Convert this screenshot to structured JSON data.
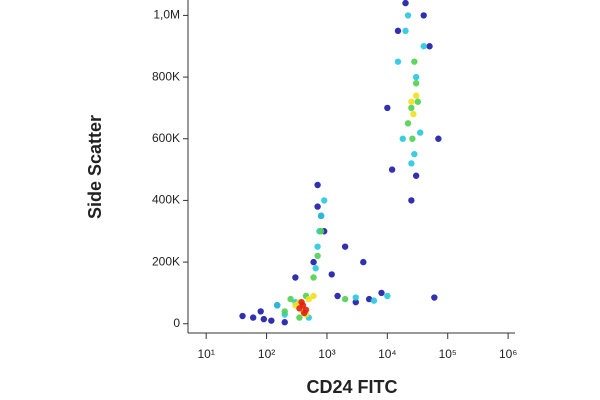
{
  "chart_data": {
    "type": "scatter",
    "xlabel": "CD24 FITC",
    "ylabel": "Side Scatter",
    "xscale": "log",
    "xlim": [
      5,
      1300000
    ],
    "xticks": [
      {
        "value": 10,
        "label": "10¹"
      },
      {
        "value": 100,
        "label": "10²"
      },
      {
        "value": 1000,
        "label": "10³"
      },
      {
        "value": 10000,
        "label": "10⁴"
      },
      {
        "value": 100000,
        "label": "10⁵"
      },
      {
        "value": 1000000,
        "label": "10⁶"
      }
    ],
    "ylim": [
      -30000,
      1050000
    ],
    "yticks": [
      0,
      {
        "value": 200000,
        "label": "200K"
      },
      {
        "value": 400000,
        "label": "400K"
      },
      {
        "value": 600000,
        "label": "600K"
      },
      {
        "value": 800000,
        "label": "800K"
      },
      {
        "value": 1000000,
        "label": "1,0M"
      }
    ],
    "series": [
      {
        "color": "#1a1aa8",
        "x": [
          60,
          80,
          120,
          150,
          200,
          90,
          300,
          700,
          1500,
          3000,
          5000,
          8000,
          2000,
          900,
          600,
          12000,
          15000,
          50000,
          70000,
          20000,
          40000,
          10000,
          25000,
          30000,
          800,
          700,
          1200,
          40,
          4000,
          60000
        ],
        "values": [
          20000,
          40000,
          10000,
          60000,
          5000,
          15000,
          150000,
          450000,
          90000,
          70000,
          80000,
          100000,
          250000,
          300000,
          200000,
          500000,
          950000,
          900000,
          600000,
          1040000,
          1000000,
          700000,
          400000,
          480000,
          350000,
          380000,
          160000,
          25000,
          200000,
          85000
        ]
      },
      {
        "color": "#28c8e0",
        "x": [
          15000,
          20000,
          30000,
          40000,
          18000,
          25000,
          35000,
          22000,
          28000,
          700,
          800,
          900,
          650,
          750,
          3000,
          6000,
          10000,
          300,
          500,
          200,
          150
        ],
        "values": [
          850000,
          950000,
          800000,
          900000,
          600000,
          520000,
          620000,
          1000000,
          550000,
          250000,
          350000,
          400000,
          180000,
          300000,
          85000,
          75000,
          90000,
          70000,
          20000,
          30000,
          60000
        ]
      },
      {
        "color": "#50d050",
        "x": [
          25000,
          30000,
          22000,
          28000,
          32000,
          26000,
          700,
          800,
          600,
          2000,
          250,
          350,
          450,
          200
        ],
        "values": [
          700000,
          780000,
          650000,
          850000,
          720000,
          600000,
          220000,
          300000,
          150000,
          80000,
          80000,
          20000,
          90000,
          40000
        ]
      },
      {
        "color": "#f0e020",
        "x": [
          27000,
          30000,
          25000,
          300,
          400,
          500,
          600,
          450,
          350
        ],
        "values": [
          680000,
          740000,
          720000,
          60000,
          40000,
          80000,
          90000,
          30000,
          70000
        ]
      },
      {
        "color": "#e02010",
        "x": [
          350,
          400,
          450,
          380,
          420
        ],
        "values": [
          50000,
          60000,
          45000,
          70000,
          35000
        ]
      }
    ]
  }
}
